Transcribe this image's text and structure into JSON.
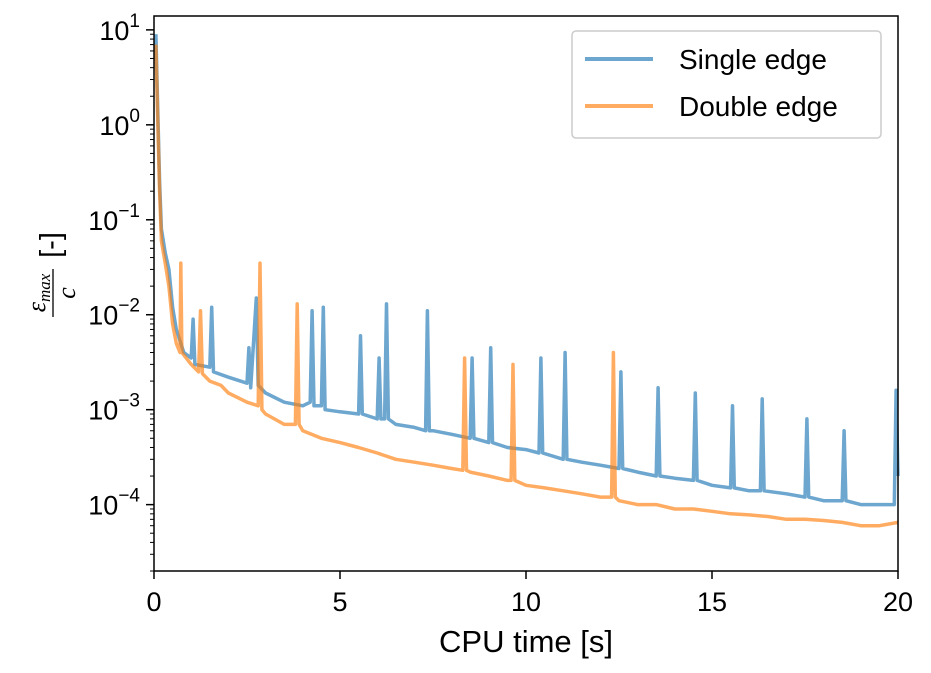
{
  "chart_data": {
    "type": "line",
    "xlabel": "CPU time [s]",
    "ylabel": {
      "numerator": "ε",
      "numerator_sub": "max",
      "denominator": "c",
      "unit": "[-]"
    },
    "xlim": [
      0,
      20
    ],
    "ylim": [
      2e-05,
      14
    ],
    "yscale": "log",
    "grid": false,
    "legend_position": "top-right",
    "x_ticks": [
      {
        "value": 0,
        "label": "0"
      },
      {
        "value": 5,
        "label": "5"
      },
      {
        "value": 10,
        "label": "10"
      },
      {
        "value": 15,
        "label": "15"
      },
      {
        "value": 20,
        "label": "20"
      }
    ],
    "y_ticks": [
      {
        "value": 10,
        "base": "10",
        "exp": "1"
      },
      {
        "value": 1,
        "base": "10",
        "exp": "0"
      },
      {
        "value": 0.1,
        "base": "10",
        "exp": "−1"
      },
      {
        "value": 0.01,
        "base": "10",
        "exp": "−2"
      },
      {
        "value": 0.001,
        "base": "10",
        "exp": "−3"
      },
      {
        "value": 0.0001,
        "base": "10",
        "exp": "−4"
      }
    ],
    "series": [
      {
        "name": "Single edge",
        "color": "#1f77b4",
        "points": [
          [
            0.05,
            9
          ],
          [
            0.1,
            1.5
          ],
          [
            0.15,
            0.25
          ],
          [
            0.2,
            0.08
          ],
          [
            0.3,
            0.045
          ],
          [
            0.4,
            0.03
          ],
          [
            0.5,
            0.012
          ],
          [
            0.6,
            0.007
          ],
          [
            0.8,
            0.004
          ],
          [
            1.0,
            0.0035
          ],
          [
            1.05,
            0.009
          ],
          [
            1.1,
            0.003
          ],
          [
            1.5,
            0.0028
          ],
          [
            1.55,
            0.012
          ],
          [
            1.6,
            0.0025
          ],
          [
            2.0,
            0.0022
          ],
          [
            2.5,
            0.0019
          ],
          [
            2.55,
            0.0045
          ],
          [
            2.6,
            0.0017
          ],
          [
            2.75,
            0.015
          ],
          [
            2.8,
            0.0018
          ],
          [
            3.0,
            0.0015
          ],
          [
            3.5,
            0.0012
          ],
          [
            4.0,
            0.0011
          ],
          [
            4.2,
            0.0012
          ],
          [
            4.25,
            0.011
          ],
          [
            4.3,
            0.0011
          ],
          [
            4.5,
            0.0011
          ],
          [
            4.55,
            0.012
          ],
          [
            4.6,
            0.001
          ],
          [
            5.0,
            0.00095
          ],
          [
            5.5,
            0.0009
          ],
          [
            5.55,
            0.006
          ],
          [
            5.6,
            0.0009
          ],
          [
            6.0,
            0.0008
          ],
          [
            6.05,
            0.0035
          ],
          [
            6.1,
            0.0008
          ],
          [
            6.2,
            0.0008
          ],
          [
            6.25,
            0.013
          ],
          [
            6.3,
            0.0008
          ],
          [
            6.5,
            0.0007
          ],
          [
            7.0,
            0.00065
          ],
          [
            7.3,
            0.0006
          ],
          [
            7.35,
            0.011
          ],
          [
            7.4,
            0.0006
          ],
          [
            7.5,
            0.0006
          ],
          [
            8.0,
            0.00055
          ],
          [
            8.5,
            0.0005
          ],
          [
            8.55,
            0.0035
          ],
          [
            8.6,
            0.0005
          ],
          [
            9.0,
            0.00045
          ],
          [
            9.05,
            0.0045
          ],
          [
            9.1,
            0.00045
          ],
          [
            9.5,
            0.0004
          ],
          [
            10.0,
            0.00038
          ],
          [
            10.35,
            0.00035
          ],
          [
            10.4,
            0.0035
          ],
          [
            10.45,
            0.00035
          ],
          [
            11.0,
            0.0003
          ],
          [
            11.05,
            0.004
          ],
          [
            11.1,
            0.0003
          ],
          [
            11.5,
            0.00028
          ],
          [
            12.0,
            0.00026
          ],
          [
            12.5,
            0.00024
          ],
          [
            12.55,
            0.0025
          ],
          [
            12.6,
            0.00024
          ],
          [
            13.0,
            0.00022
          ],
          [
            13.5,
            0.0002
          ],
          [
            13.55,
            0.0017
          ],
          [
            13.6,
            0.0002
          ],
          [
            14.0,
            0.00019
          ],
          [
            14.5,
            0.00018
          ],
          [
            14.55,
            0.0015
          ],
          [
            14.6,
            0.00018
          ],
          [
            15.0,
            0.00016
          ],
          [
            15.5,
            0.00015
          ],
          [
            15.55,
            0.0011
          ],
          [
            15.6,
            0.00015
          ],
          [
            16.0,
            0.00014
          ],
          [
            16.3,
            0.00014
          ],
          [
            16.35,
            0.0013
          ],
          [
            16.4,
            0.00014
          ],
          [
            17.0,
            0.00013
          ],
          [
            17.5,
            0.00012
          ],
          [
            17.55,
            0.0008
          ],
          [
            17.6,
            0.00012
          ],
          [
            18.0,
            0.00011
          ],
          [
            18.5,
            0.00011
          ],
          [
            18.55,
            0.0006
          ],
          [
            18.6,
            0.00011
          ],
          [
            19.0,
            0.0001
          ],
          [
            19.5,
            0.0001
          ],
          [
            19.9,
            0.0001
          ],
          [
            19.95,
            0.0016
          ],
          [
            20.0,
            0.0002
          ]
        ]
      },
      {
        "name": "Double edge",
        "color": "#ff7f0e",
        "points": [
          [
            0.05,
            7
          ],
          [
            0.1,
            1.2
          ],
          [
            0.15,
            0.2
          ],
          [
            0.2,
            0.06
          ],
          [
            0.3,
            0.035
          ],
          [
            0.4,
            0.02
          ],
          [
            0.5,
            0.008
          ],
          [
            0.6,
            0.005
          ],
          [
            0.7,
            0.004
          ],
          [
            0.72,
            0.035
          ],
          [
            0.75,
            0.004
          ],
          [
            1.0,
            0.003
          ],
          [
            1.2,
            0.0025
          ],
          [
            1.25,
            0.011
          ],
          [
            1.3,
            0.0024
          ],
          [
            1.5,
            0.002
          ],
          [
            1.8,
            0.0018
          ],
          [
            2.0,
            0.0015
          ],
          [
            2.5,
            0.0012
          ],
          [
            2.8,
            0.0011
          ],
          [
            2.85,
            0.035
          ],
          [
            2.9,
            0.001
          ],
          [
            3.0,
            0.0009
          ],
          [
            3.5,
            0.0007
          ],
          [
            3.8,
            0.0007
          ],
          [
            3.85,
            0.013
          ],
          [
            3.9,
            0.0007
          ],
          [
            4.0,
            0.0006
          ],
          [
            4.5,
            0.0005
          ],
          [
            5.0,
            0.00045
          ],
          [
            5.5,
            0.0004
          ],
          [
            6.0,
            0.00035
          ],
          [
            6.5,
            0.0003
          ],
          [
            7.0,
            0.00028
          ],
          [
            7.5,
            0.00026
          ],
          [
            8.0,
            0.00024
          ],
          [
            8.3,
            0.00023
          ],
          [
            8.35,
            0.0035
          ],
          [
            8.4,
            0.00023
          ],
          [
            8.5,
            0.00022
          ],
          [
            9.0,
            0.0002
          ],
          [
            9.5,
            0.00018
          ],
          [
            9.6,
            0.00018
          ],
          [
            9.65,
            0.003
          ],
          [
            9.7,
            0.00018
          ],
          [
            10.0,
            0.00016
          ],
          [
            10.5,
            0.00015
          ],
          [
            11.0,
            0.00014
          ],
          [
            11.5,
            0.00013
          ],
          [
            12.0,
            0.00012
          ],
          [
            12.3,
            0.00012
          ],
          [
            12.35,
            0.004
          ],
          [
            12.4,
            0.00012
          ],
          [
            12.5,
            0.00011
          ],
          [
            13.0,
            0.0001
          ],
          [
            13.5,
            0.0001
          ],
          [
            14.0,
            9e-05
          ],
          [
            14.5,
            9e-05
          ],
          [
            15.0,
            8.5e-05
          ],
          [
            15.5,
            8e-05
          ],
          [
            16.0,
            7.8e-05
          ],
          [
            16.5,
            7.5e-05
          ],
          [
            17.0,
            7e-05
          ],
          [
            17.5,
            7e-05
          ],
          [
            18.0,
            6.8e-05
          ],
          [
            18.5,
            6.5e-05
          ],
          [
            19.0,
            6e-05
          ],
          [
            19.5,
            6e-05
          ],
          [
            20.0,
            6.5e-05
          ]
        ]
      }
    ]
  }
}
